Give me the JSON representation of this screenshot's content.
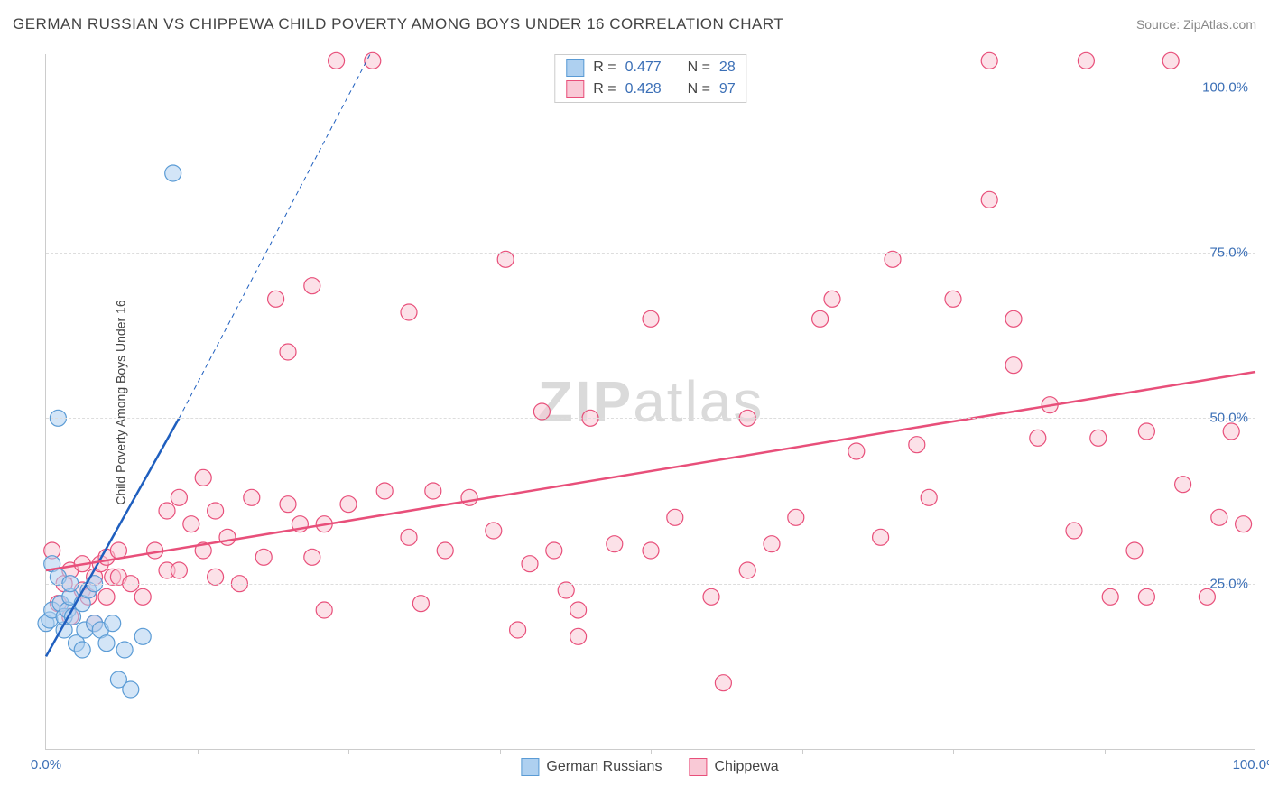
{
  "title": "GERMAN RUSSIAN VS CHIPPEWA CHILD POVERTY AMONG BOYS UNDER 16 CORRELATION CHART",
  "source": "Source: ZipAtlas.com",
  "ylabel": "Child Poverty Among Boys Under 16",
  "watermark_bold": "ZIP",
  "watermark_rest": "atlas",
  "xlim": [
    0,
    100
  ],
  "ylim": [
    0,
    105
  ],
  "yticks": [
    {
      "v": 25,
      "label": "25.0%"
    },
    {
      "v": 50,
      "label": "50.0%"
    },
    {
      "v": 75,
      "label": "75.0%"
    },
    {
      "v": 100,
      "label": "100.0%"
    }
  ],
  "xticks_minor": [
    12.5,
    25,
    37.5,
    50,
    62.5,
    75,
    87.5
  ],
  "xticks": [
    {
      "v": 0,
      "label": "0.0%"
    },
    {
      "v": 100,
      "label": "100.0%"
    }
  ],
  "series": [
    {
      "name": "German Russians",
      "short": "german-russians",
      "fill": "#aed0f0",
      "stroke": "#5a9bd5",
      "r_label": "R =",
      "r": "0.477",
      "n_label": "N =",
      "n": "28",
      "trend": {
        "x1": 0,
        "y1": 14,
        "x2": 11,
        "y2": 50,
        "color": "#1f5fbf",
        "width": 2.5,
        "dash_x1": 11,
        "dash_y1": 50,
        "dash_x2": 26.8,
        "dash_y2": 105
      },
      "points": [
        [
          0,
          19
        ],
        [
          0.3,
          19.5
        ],
        [
          0.5,
          21
        ],
        [
          0.5,
          28
        ],
        [
          1,
          26
        ],
        [
          1,
          50
        ],
        [
          1.2,
          22
        ],
        [
          1.5,
          18
        ],
        [
          1.5,
          20
        ],
        [
          1.8,
          21
        ],
        [
          2,
          23
        ],
        [
          2,
          25
        ],
        [
          2.2,
          20
        ],
        [
          2.5,
          16
        ],
        [
          3,
          15
        ],
        [
          3,
          22
        ],
        [
          3.2,
          18
        ],
        [
          3.5,
          24
        ],
        [
          4,
          19
        ],
        [
          4,
          25
        ],
        [
          4.5,
          18
        ],
        [
          5,
          16
        ],
        [
          5.5,
          19
        ],
        [
          6,
          10.5
        ],
        [
          6.5,
          15
        ],
        [
          7,
          9
        ],
        [
          8,
          17
        ],
        [
          10.5,
          87
        ]
      ]
    },
    {
      "name": "Chippewa",
      "short": "chippewa",
      "fill": "#f9c9d6",
      "stroke": "#e84f7a",
      "r_label": "R =",
      "r": "0.428",
      "n_label": "N =",
      "n": "97",
      "trend": {
        "x1": 0,
        "y1": 27,
        "x2": 100,
        "y2": 57,
        "color": "#e84f7a",
        "width": 2.5
      },
      "points": [
        [
          0.5,
          30
        ],
        [
          1,
          22
        ],
        [
          1.5,
          25
        ],
        [
          2,
          20
        ],
        [
          2,
          27
        ],
        [
          3,
          24
        ],
        [
          3,
          28
        ],
        [
          3.5,
          23
        ],
        [
          4,
          26
        ],
        [
          4,
          19
        ],
        [
          4.5,
          28
        ],
        [
          5,
          23
        ],
        [
          5,
          29
        ],
        [
          5.5,
          26
        ],
        [
          6,
          26
        ],
        [
          6,
          30
        ],
        [
          7,
          25
        ],
        [
          8,
          23
        ],
        [
          9,
          30
        ],
        [
          10,
          27
        ],
        [
          10,
          36
        ],
        [
          11,
          27
        ],
        [
          11,
          38
        ],
        [
          12,
          34
        ],
        [
          13,
          30
        ],
        [
          13,
          41
        ],
        [
          14,
          26
        ],
        [
          14,
          36
        ],
        [
          15,
          32
        ],
        [
          16,
          25
        ],
        [
          17,
          38
        ],
        [
          18,
          29
        ],
        [
          19,
          68
        ],
        [
          20,
          37
        ],
        [
          20,
          60
        ],
        [
          21,
          34
        ],
        [
          22,
          29
        ],
        [
          22,
          70
        ],
        [
          23,
          21
        ],
        [
          23,
          34
        ],
        [
          24,
          104
        ],
        [
          25,
          37
        ],
        [
          27,
          104
        ],
        [
          28,
          39
        ],
        [
          30,
          32
        ],
        [
          30,
          66
        ],
        [
          31,
          22
        ],
        [
          32,
          39
        ],
        [
          33,
          30
        ],
        [
          35,
          38
        ],
        [
          37,
          33
        ],
        [
          38,
          74
        ],
        [
          39,
          18
        ],
        [
          40,
          28
        ],
        [
          41,
          51
        ],
        [
          42,
          30
        ],
        [
          43,
          24
        ],
        [
          44,
          17
        ],
        [
          44,
          21
        ],
        [
          45,
          50
        ],
        [
          47,
          31
        ],
        [
          50,
          30
        ],
        [
          50,
          65
        ],
        [
          52,
          35
        ],
        [
          55,
          23
        ],
        [
          56,
          10
        ],
        [
          58,
          27
        ],
        [
          58,
          50
        ],
        [
          60,
          31
        ],
        [
          62,
          35
        ],
        [
          64,
          65
        ],
        [
          65,
          68
        ],
        [
          67,
          45
        ],
        [
          69,
          32
        ],
        [
          70,
          74
        ],
        [
          72,
          46
        ],
        [
          73,
          38
        ],
        [
          75,
          68
        ],
        [
          78,
          83
        ],
        [
          78,
          104
        ],
        [
          80,
          58
        ],
        [
          80,
          65
        ],
        [
          82,
          47
        ],
        [
          83,
          52
        ],
        [
          85,
          33
        ],
        [
          86,
          104
        ],
        [
          87,
          47
        ],
        [
          88,
          23
        ],
        [
          90,
          30
        ],
        [
          91,
          48
        ],
        [
          91,
          23
        ],
        [
          93,
          104
        ],
        [
          94,
          40
        ],
        [
          96,
          23
        ],
        [
          97,
          35
        ],
        [
          98,
          48
        ],
        [
          99,
          34
        ]
      ]
    }
  ],
  "legend": {
    "items": [
      {
        "label": "German Russians",
        "fill": "#aed0f0",
        "stroke": "#5a9bd5"
      },
      {
        "label": "Chippewa",
        "fill": "#f9c9d6",
        "stroke": "#e84f7a"
      }
    ]
  }
}
